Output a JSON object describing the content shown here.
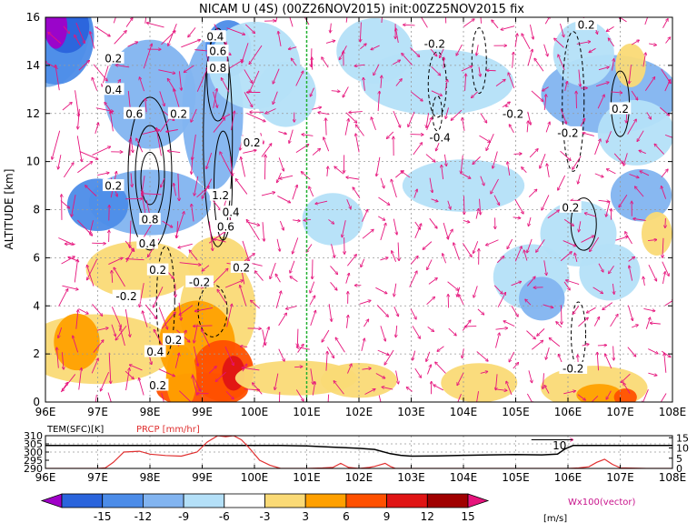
{
  "chart_data": [
    {
      "type": "heatmap",
      "title": "NICAM U (4S) (00Z26NOV2015) init:00Z25NOV2015 fix",
      "ylabel": "ALTITUDE [km]",
      "xlim": [
        96,
        108
      ],
      "ylim": [
        0,
        16
      ],
      "x_ticks": [
        "96E",
        "97E",
        "98E",
        "99E",
        "100E",
        "101E",
        "102E",
        "103E",
        "104E",
        "105E",
        "106E",
        "107E",
        "108E"
      ],
      "y_ticks": [
        "0",
        "2",
        "4",
        "6",
        "8",
        "10",
        "12",
        "14",
        "16"
      ],
      "grid": true,
      "reference_line_x": 101,
      "contour_labels": [
        {
          "text": "0.2",
          "x": 97.3,
          "y": 14.3
        },
        {
          "text": "0.4",
          "x": 97.3,
          "y": 13.0
        },
        {
          "text": "0.6",
          "x": 97.7,
          "y": 12.0
        },
        {
          "text": "0.2",
          "x": 98.55,
          "y": 12.0
        },
        {
          "text": "0.2",
          "x": 97.3,
          "y": 9.0
        },
        {
          "text": "0.8",
          "x": 98.0,
          "y": 7.6
        },
        {
          "text": "0.4",
          "x": 97.95,
          "y": 6.6
        },
        {
          "text": "0.2",
          "x": 98.15,
          "y": 5.5
        },
        {
          "text": "-0.2",
          "x": 97.55,
          "y": 4.4
        },
        {
          "text": "0.2",
          "x": 98.45,
          "y": 2.6
        },
        {
          "text": "0.4",
          "x": 98.1,
          "y": 2.1
        },
        {
          "text": "0.2",
          "x": 98.15,
          "y": 0.7
        },
        {
          "text": "0.4",
          "x": 99.25,
          "y": 15.2
        },
        {
          "text": "0.6",
          "x": 99.3,
          "y": 14.6
        },
        {
          "text": "0.8",
          "x": 99.3,
          "y": 13.9
        },
        {
          "text": "0.2",
          "x": 99.95,
          "y": 10.8
        },
        {
          "text": "1.2",
          "x": 99.35,
          "y": 8.6
        },
        {
          "text": "0.4",
          "x": 99.55,
          "y": 7.9
        },
        {
          "text": "0.6",
          "x": 99.45,
          "y": 7.3
        },
        {
          "text": "0.2",
          "x": 99.75,
          "y": 5.6
        },
        {
          "text": "-0.2",
          "x": 98.95,
          "y": 5.0
        },
        {
          "text": "-0.2",
          "x": 103.45,
          "y": 14.9
        },
        {
          "text": "-0.2",
          "x": 104.95,
          "y": 12.0
        },
        {
          "text": "-0.4",
          "x": 103.55,
          "y": 11.0
        },
        {
          "text": "-0.2",
          "x": 106.0,
          "y": 11.2
        },
        {
          "text": "0.2",
          "x": 107.0,
          "y": 12.2
        },
        {
          "text": "0.2",
          "x": 106.35,
          "y": 15.7
        },
        {
          "text": "0.2",
          "x": 106.05,
          "y": 8.1
        },
        {
          "text": "-0.2",
          "x": 106.1,
          "y": 1.4
        }
      ],
      "colorbar": {
        "levels": [
          "-15",
          "-12",
          "-9",
          "-6",
          "-3",
          "3",
          "6",
          "9",
          "12",
          "15"
        ],
        "unit": "[m/s]",
        "colors": [
          "#a000c8",
          "#2a64dc",
          "#4c8ce8",
          "#82b4f0",
          "#b4e0f8",
          "#ffffff",
          "#fada76",
          "#ffa000",
          "#ff5000",
          "#e01414",
          "#a00000",
          "#e6147c"
        ]
      },
      "vector_label": "Wx100(vector)"
    },
    {
      "type": "line",
      "labels": {
        "tem": "TEM(SFC)[K]",
        "prcp": "PRCP [mm/hr]"
      },
      "xlim": [
        96,
        108
      ],
      "left_ticks": [
        "310",
        "305",
        "300",
        "295",
        "290"
      ],
      "right_ticks": [
        "15",
        "10",
        "5",
        "0"
      ],
      "x_ticks": [
        "96E",
        "97E",
        "98E",
        "99E",
        "100E",
        "101E",
        "102E",
        "103E",
        "104E",
        "105E",
        "106E",
        "107E",
        "108E"
      ],
      "series": [
        {
          "name": "TEM(SFC)[K]",
          "color": "#000000",
          "x": [
            96,
            97,
            97.5,
            98,
            98.5,
            99,
            99.4,
            99.7,
            100,
            100.5,
            101,
            101.5,
            102,
            102.3,
            102.6,
            102.8,
            103,
            103.5,
            104,
            104.5,
            105,
            105.5,
            105.8,
            105.95,
            106.1,
            106.5,
            107,
            107.5,
            108
          ],
          "values": [
            304,
            304,
            304,
            304,
            304,
            304,
            304,
            304,
            304,
            304,
            303.8,
            303,
            302.3,
            301.6,
            299,
            298,
            297.5,
            297.6,
            298,
            298.3,
            298.5,
            298.3,
            298.8,
            302,
            304,
            304,
            304,
            304,
            304
          ]
        },
        {
          "name": "PRCP [mm/hr]",
          "color": "#e03030",
          "x": [
            96,
            97,
            97.15,
            97.3,
            97.5,
            97.8,
            98,
            98.3,
            98.6,
            98.9,
            99.1,
            99.3,
            99.45,
            99.6,
            99.75,
            99.9,
            100.1,
            100.3,
            100.5,
            101,
            101.3,
            101.5,
            101.65,
            101.8,
            102,
            102.2,
            102.3,
            102.5,
            102.6,
            102.7,
            103,
            103.5,
            104,
            104.5,
            105,
            105.5,
            106,
            106.2,
            106.4,
            106.55,
            106.7,
            106.85,
            107,
            107.5,
            108
          ],
          "values": [
            0,
            0,
            0.3,
            3,
            8,
            8.4,
            7,
            6.3,
            6,
            8,
            13,
            16,
            15.5,
            16,
            14,
            10,
            4,
            1.5,
            0,
            0,
            0.2,
            0.5,
            2.5,
            0.5,
            0,
            0.5,
            1,
            2.5,
            1,
            0,
            0,
            0,
            0,
            0,
            0,
            0,
            0,
            0.2,
            0.8,
            3,
            4.5,
            2,
            0.3,
            0,
            0
          ]
        }
      ],
      "annotation": {
        "text": "10",
        "x": 105.95
      }
    }
  ]
}
